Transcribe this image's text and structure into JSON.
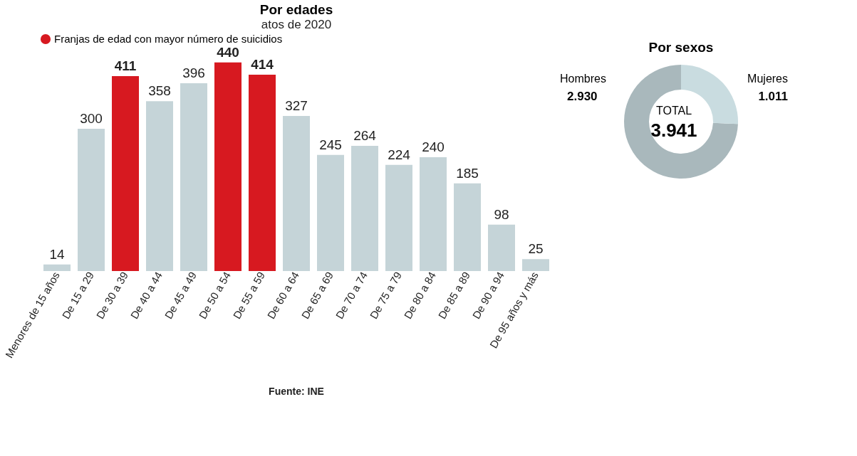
{
  "chart_data": [
    {
      "type": "bar",
      "title": "Por edades",
      "subtitle": "atos de 2020",
      "categories": [
        "Menores de 15 años",
        "De 15 a 29",
        "De 30 a 39",
        "De 40 a 44",
        "De 45 a 49",
        "De 50 a 54",
        "De 55 a 59",
        "De 60 a 64",
        "De 65 a 69",
        "De 70 a 74",
        "De 75 a 79",
        "De 80 a 84",
        "De 85 a 89",
        "De 90 a 94",
        "De 95 años y más"
      ],
      "series": [
        {
          "name": "Franjas de edad con mayor número de suicidios",
          "color": "#d71920",
          "values": [
            null,
            null,
            411,
            null,
            null,
            440,
            414,
            null,
            null,
            null,
            null,
            null,
            null,
            null,
            null
          ]
        },
        {
          "color": "#c5d4d8",
          "values": [
            14,
            300,
            null,
            358,
            396,
            null,
            null,
            327,
            245,
            264,
            224,
            240,
            185,
            98,
            25
          ]
        }
      ],
      "data_labels": true,
      "legend": "top",
      "annotations": [
        "Fuente: INE"
      ]
    },
    {
      "type": "donut",
      "title": "Por sexos",
      "categories": [
        "Hombres",
        "Mujeres"
      ],
      "values": [
        2930,
        1011
      ],
      "colors": [
        "#a9b8bc",
        "#c9dce0"
      ],
      "value_labels": [
        "2.930",
        "1.011"
      ],
      "annotations": [
        "TOTAL",
        "3.941"
      ]
    }
  ]
}
